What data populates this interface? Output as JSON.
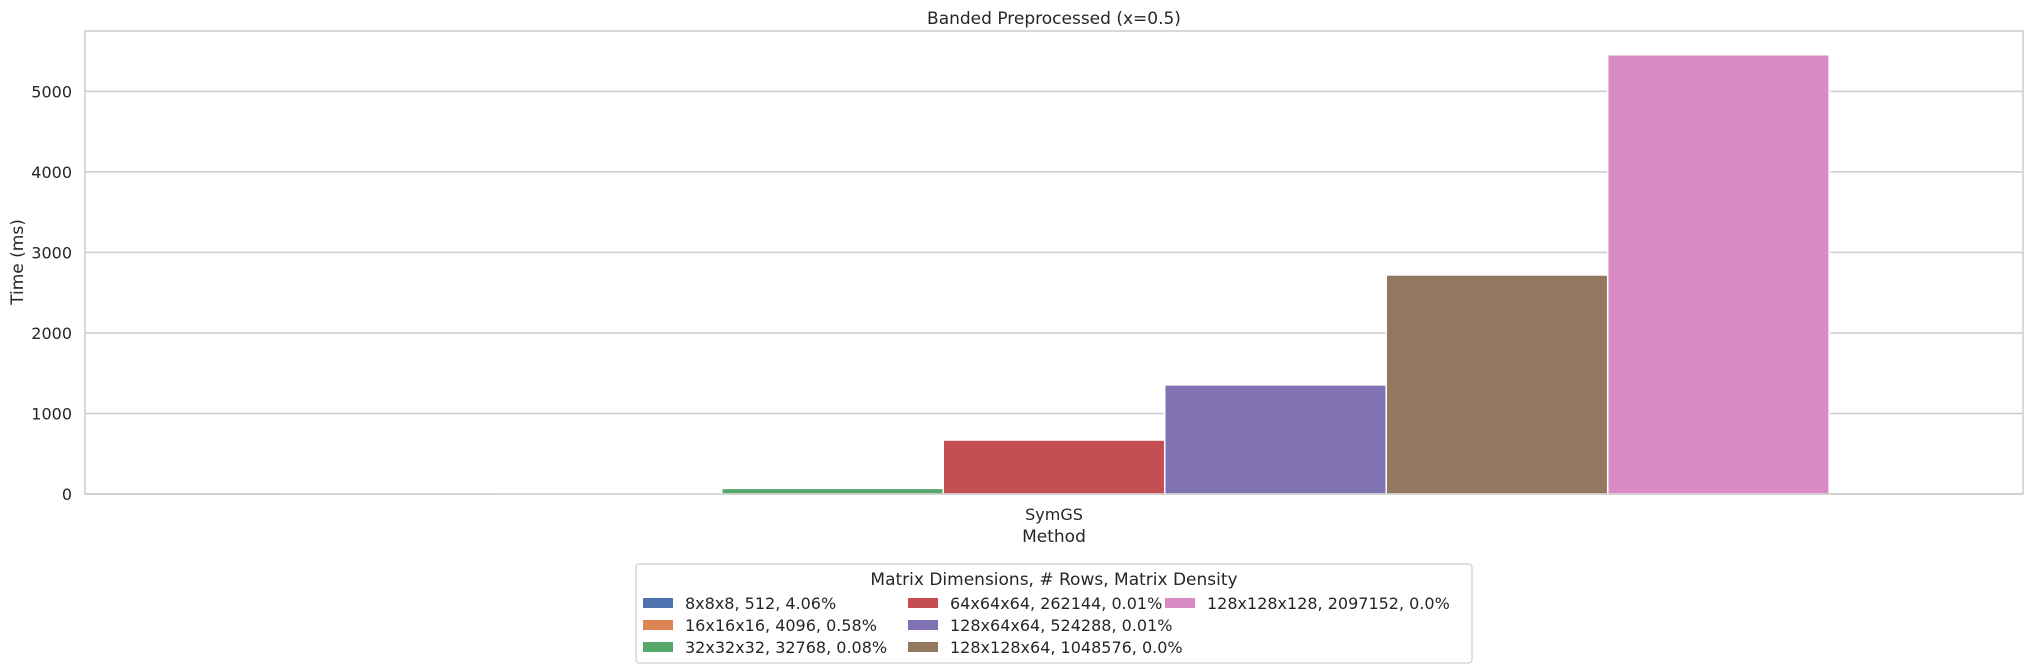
{
  "chart_data": {
    "type": "bar",
    "title": "Banded Preprocessed (x=0.5)",
    "xlabel": "Method",
    "ylabel": "Time (ms)",
    "categories": [
      "SymGS"
    ],
    "ylim": [
      0,
      5750
    ],
    "yticks": [
      "0",
      "1000",
      "2000",
      "3000",
      "4000",
      "5000"
    ],
    "grid": "y",
    "legend": {
      "title": "Matrix Dimensions, # Rows, Matrix Density",
      "placement": "bottom-center"
    },
    "series": [
      {
        "name": "8x8x8, 512, 4.06%",
        "values": [
          0.3
        ],
        "color": "#4c72b0"
      },
      {
        "name": "16x16x16, 4096, 0.58%",
        "values": [
          3
        ],
        "color": "#dd8452"
      },
      {
        "name": "32x32x32, 32768, 0.08%",
        "values": [
          70
        ],
        "color": "#55a868"
      },
      {
        "name": "64x64x64, 262144, 0.01%",
        "values": [
          670
        ],
        "color": "#c44e52"
      },
      {
        "name": "128x64x64, 524288, 0.01%",
        "values": [
          1355
        ],
        "color": "#8172b3"
      },
      {
        "name": "128x128x64, 1048576, 0.0%",
        "values": [
          2720
        ],
        "color": "#937860"
      },
      {
        "name": "128x128x128, 2097152, 0.0%",
        "values": [
          5455
        ],
        "color": "#da8bc3"
      }
    ]
  }
}
